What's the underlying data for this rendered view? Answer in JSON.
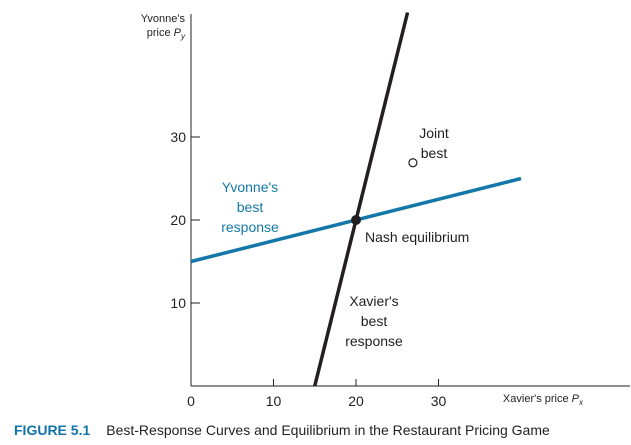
{
  "colors": {
    "yvonne": "#1378a9",
    "xavier": "#231f20",
    "axis": "#231f20",
    "caption_accent": "#1173a8"
  },
  "caption": {
    "figure_number": "FIGURE 5.1",
    "text": "Best-Response Curves and Equilibrium in the Restaurant Pricing Game"
  },
  "chart_data": {
    "type": "line",
    "title": "",
    "xlabel": "Xavier's price P_x",
    "ylabel": "Yvonne's price P_y",
    "xlabel_main": "Xavier's price ",
    "xlabel_var": "P",
    "xlabel_sub": "x",
    "ylabel_line1": "Yvonne's",
    "ylabel_line2_main": "price ",
    "ylabel_line2_var": "P",
    "ylabel_line2_sub": "y",
    "xlim": [
      0,
      40
    ],
    "ylim": [
      0,
      42
    ],
    "x_ticks": [
      0,
      10,
      20,
      30
    ],
    "x_tick_labels": [
      "0",
      "10",
      "20",
      "30"
    ],
    "y_ticks": [
      10,
      20,
      30
    ],
    "y_tick_labels": [
      "10",
      "20",
      "30"
    ],
    "grid": false,
    "series": [
      {
        "name": "Yvonne's best response",
        "label_lines": [
          "Yvonne's",
          "best",
          "response"
        ],
        "color": "#1378a9",
        "x": [
          0,
          40
        ],
        "y": [
          15,
          25
        ]
      },
      {
        "name": "Xavier's best response",
        "label_lines": [
          "Xavier's",
          "best",
          "response"
        ],
        "color": "#231f20",
        "x": [
          15,
          26.25
        ],
        "y": [
          0,
          45
        ]
      }
    ],
    "points": [
      {
        "name": "Nash equilibrium",
        "label_lines": [
          "Nash equilibrium"
        ],
        "x": 20,
        "y": 20,
        "marker": "filled"
      },
      {
        "name": "Joint best",
        "label_lines": [
          "Joint",
          "best"
        ],
        "x": 26.9,
        "y": 26.9,
        "marker": "open"
      }
    ]
  }
}
